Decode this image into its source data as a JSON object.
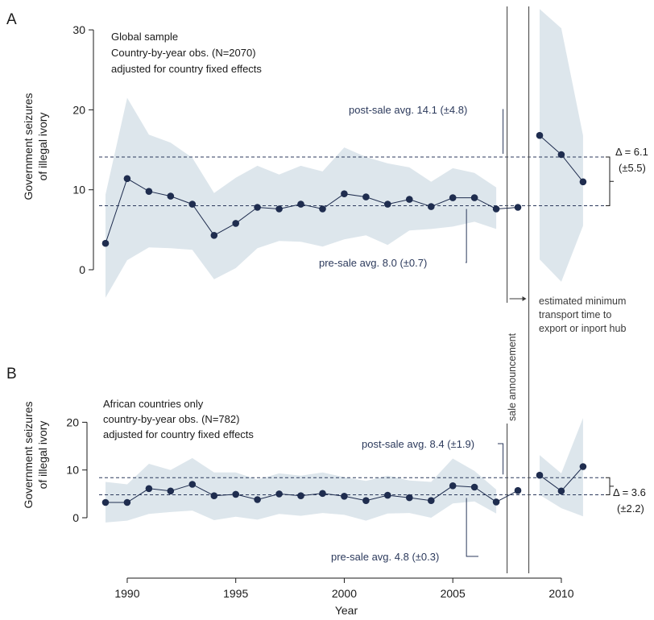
{
  "colors": {
    "series": "#1f2d4f",
    "band": "#dde6ec",
    "guide": "#2c3a5c",
    "vline": "#555555"
  },
  "x_axis": {
    "label": "Year",
    "ticks": [
      "1990",
      "1995",
      "2000",
      "2005",
      "2010"
    ]
  },
  "shared": {
    "sale_announcement": "sale announcement",
    "transport_note": [
      "estimated minimum",
      "transport time to",
      "export or inport hub"
    ]
  },
  "chart_data": [
    {
      "panel": "A",
      "type": "line",
      "ylabel": [
        "Government seizures",
        "of illegal ivory"
      ],
      "yticks": [
        "0",
        "10",
        "20",
        "30"
      ],
      "ylim": [
        0,
        30
      ],
      "xlim": [
        1989,
        2011
      ],
      "notes": [
        "Global sample",
        "Country-by-year obs. (N=2070)",
        "adjusted for country fixed effects"
      ],
      "pre_sale_label": "pre-sale avg. 8.0 (±0.7)",
      "post_sale_label": "post-sale avg. 14.1 (±4.8)",
      "pre_sale_avg": 8.0,
      "post_sale_avg": 14.1,
      "delta_label": [
        "Δ = 6.1",
        "(±5.5)"
      ],
      "x": [
        1989,
        1990,
        1991,
        1992,
        1993,
        1994,
        1995,
        1996,
        1997,
        1998,
        1999,
        2000,
        2001,
        2002,
        2003,
        2004,
        2005,
        2006,
        2007,
        2008,
        2009,
        2010,
        2011
      ],
      "y": [
        3.3,
        11.4,
        9.8,
        9.2,
        8.2,
        4.3,
        5.8,
        7.8,
        7.6,
        8.2,
        7.6,
        9.5,
        9.1,
        8.2,
        8.8,
        7.9,
        9.0,
        9.0,
        7.6,
        7.8,
        16.8,
        14.4,
        11.0
      ],
      "ci_lower": [
        -3.5,
        1.2,
        2.8,
        2.7,
        2.5,
        -1.2,
        0.2,
        2.7,
        3.6,
        3.5,
        2.9,
        3.8,
        4.3,
        3.1,
        4.9,
        5.1,
        5.4,
        6.0,
        5.1,
        null,
        1.3,
        -1.5,
        5.5
      ],
      "ci_upper": [
        9.4,
        21.5,
        16.9,
        15.9,
        14.0,
        9.6,
        11.5,
        13.0,
        11.9,
        13.0,
        12.3,
        15.3,
        14.1,
        13.3,
        12.8,
        11.0,
        12.7,
        12.1,
        10.3,
        null,
        32.6,
        30.2,
        16.8
      ]
    },
    {
      "panel": "B",
      "type": "line",
      "ylabel": [
        "Government seizures",
        "of illegal ivory"
      ],
      "yticks": [
        "0",
        "10",
        "20"
      ],
      "ylim": [
        0,
        20
      ],
      "xlim": [
        1989,
        2011
      ],
      "notes": [
        "African countries only",
        "country-by-year obs. (N=782)",
        "adjusted for country fixed effects"
      ],
      "pre_sale_label": "pre-sale avg. 4.8 (±0.3)",
      "post_sale_label": "post-sale avg. 8.4 (±1.9)",
      "pre_sale_avg": 4.8,
      "post_sale_avg": 8.4,
      "delta_label": [
        "Δ = 3.6",
        "(±2.2)"
      ],
      "x": [
        1989,
        1990,
        1991,
        1992,
        1993,
        1994,
        1995,
        1996,
        1997,
        1998,
        1999,
        2000,
        2001,
        2002,
        2003,
        2004,
        2005,
        2006,
        2007,
        2008,
        2009,
        2010,
        2011
      ],
      "y": [
        3.2,
        3.2,
        6.1,
        5.6,
        7.0,
        4.6,
        4.9,
        3.8,
        5.0,
        4.6,
        5.1,
        4.5,
        3.6,
        4.7,
        4.2,
        3.6,
        6.7,
        6.4,
        3.3,
        5.7,
        8.9,
        5.6,
        10.7
      ],
      "ci_lower": [
        -1.0,
        -0.6,
        0.8,
        1.2,
        1.5,
        -0.5,
        0.2,
        -0.4,
        0.8,
        0.4,
        1.0,
        0.6,
        -0.6,
        0.9,
        1.0,
        0.0,
        3.0,
        3.4,
        0.9,
        null,
        4.8,
        2.0,
        0.3
      ],
      "ci_upper": [
        7.5,
        7.0,
        11.3,
        10.0,
        12.5,
        9.5,
        9.5,
        8.0,
        9.3,
        8.8,
        9.5,
        8.5,
        7.7,
        8.8,
        7.8,
        7.5,
        12.4,
        9.8,
        5.9,
        null,
        13.1,
        9.3,
        20.9
      ]
    }
  ]
}
